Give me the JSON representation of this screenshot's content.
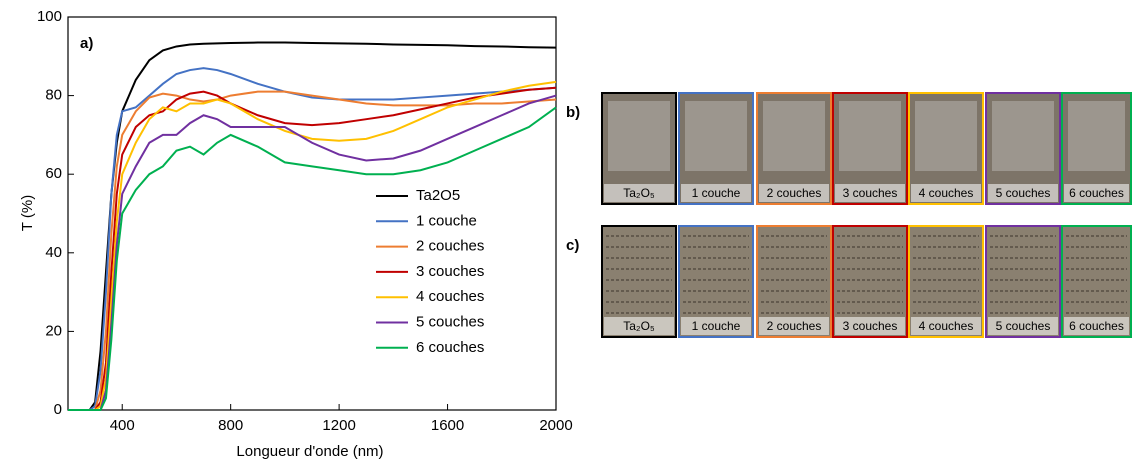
{
  "chart_data": {
    "type": "line",
    "annotation": "a)",
    "x_label": "Longueur d'onde (nm)",
    "y_label": "T (%)",
    "xlim": [
      200,
      2000
    ],
    "xticks": [
      400,
      800,
      1200,
      1600,
      2000
    ],
    "ylim": [
      0,
      100
    ],
    "yticks": [
      0,
      20,
      40,
      60,
      80,
      100
    ],
    "legend": "lower right",
    "x": [
      200,
      250,
      280,
      300,
      320,
      340,
      360,
      380,
      400,
      450,
      500,
      550,
      600,
      650,
      700,
      750,
      800,
      900,
      1000,
      1100,
      1200,
      1300,
      1400,
      1500,
      1600,
      1700,
      1800,
      1900,
      2000
    ],
    "series": [
      {
        "name": "Ta2O5",
        "color": "#000000",
        "values": [
          0,
          0,
          0,
          2,
          15,
          35,
          55,
          68,
          76,
          84,
          89,
          91.5,
          92.5,
          93,
          93.2,
          93.3,
          93.4,
          93.5,
          93.5,
          93.4,
          93.3,
          93.2,
          93,
          92.9,
          92.8,
          92.6,
          92.5,
          92.3,
          92.2
        ]
      },
      {
        "name": "1 couche",
        "color": "#4472c4",
        "values": [
          0,
          0,
          0,
          1,
          10,
          30,
          55,
          70,
          76,
          77,
          80,
          83,
          85.5,
          86.5,
          87,
          86.5,
          85.5,
          83,
          81,
          79.5,
          79,
          79,
          79,
          79.5,
          80,
          80.5,
          81,
          81.5,
          82
        ]
      },
      {
        "name": "2 couches",
        "color": "#ed7d31",
        "values": [
          0,
          0,
          0,
          0,
          5,
          20,
          45,
          62,
          70,
          76,
          79.5,
          80.5,
          80,
          79,
          78.5,
          79,
          80,
          81,
          81,
          80,
          79,
          78,
          77.5,
          77.5,
          77.5,
          78,
          78,
          78.5,
          79
        ]
      },
      {
        "name": "3 couches",
        "color": "#c00000",
        "values": [
          0,
          0,
          0,
          0,
          2,
          12,
          35,
          55,
          65,
          72,
          75,
          76,
          79,
          80.5,
          81,
          80,
          78,
          75,
          73,
          72.5,
          73,
          74,
          75,
          76.5,
          78,
          79.5,
          80.5,
          81.5,
          82
        ]
      },
      {
        "name": "4 couches",
        "color": "#ffc000",
        "values": [
          0,
          0,
          0,
          0,
          1,
          8,
          28,
          48,
          60,
          68,
          74,
          77,
          76,
          78,
          78,
          79,
          78,
          74,
          71,
          69,
          68.5,
          69,
          71,
          74,
          77,
          79,
          81,
          82.5,
          83.5
        ]
      },
      {
        "name": "5 couches",
        "color": "#7030a0",
        "values": [
          0,
          0,
          0,
          0,
          0,
          5,
          22,
          42,
          55,
          62,
          68,
          70,
          70,
          73,
          75,
          74,
          72,
          72,
          72,
          68,
          65,
          63.5,
          64,
          66,
          69,
          72,
          75,
          78,
          80
        ]
      },
      {
        "name": "6 couches",
        "color": "#00b050",
        "values": [
          0,
          0,
          0,
          0,
          0,
          3,
          18,
          38,
          50,
          56,
          60,
          62,
          66,
          67,
          65,
          68,
          70,
          67,
          63,
          62,
          61,
          60,
          60,
          61,
          63,
          66,
          69,
          72,
          77
        ]
      }
    ]
  },
  "photos": {
    "rows": [
      {
        "label": "b)",
        "fill": "#7d7468"
      },
      {
        "label": "c)",
        "fill": "#8a8070"
      }
    ],
    "captions": [
      "Ta₂O₅",
      "1 couche",
      "2 couches",
      "3 couches",
      "4 couches",
      "5 couches",
      "6 couches"
    ],
    "border_colors": [
      "#000000",
      "#4472c4",
      "#ed7d31",
      "#c00000",
      "#ffc000",
      "#7030a0",
      "#00b050"
    ]
  }
}
